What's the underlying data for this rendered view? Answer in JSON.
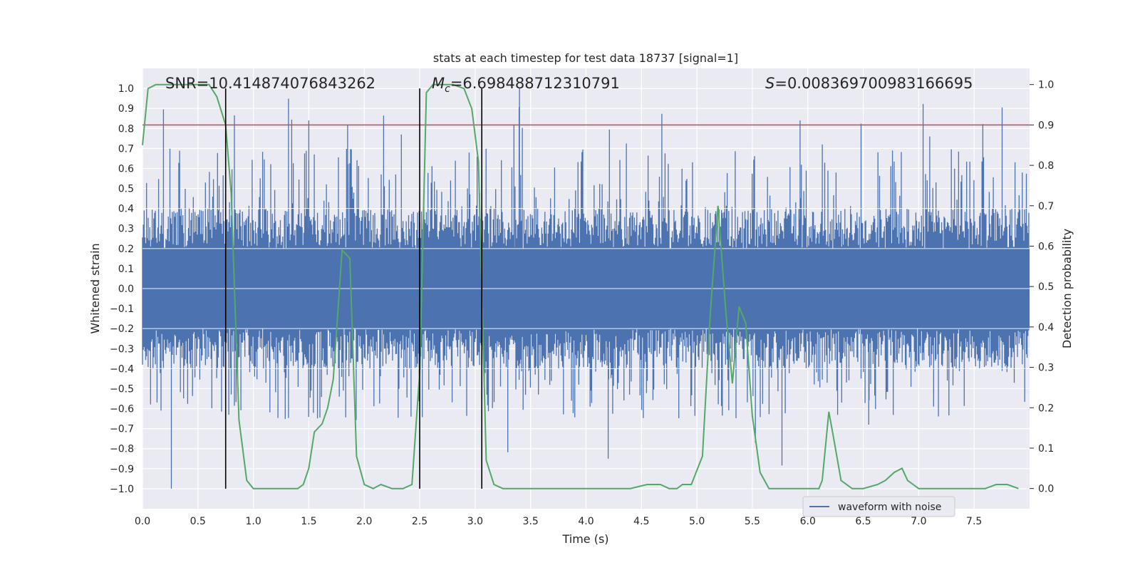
{
  "chart_data": {
    "type": "line",
    "title": "stats at each timestep for test data 18737 [signal=1]",
    "xlabel": "Time (s)",
    "ylabel": "Whitened strain",
    "y2label": "Detection probability",
    "xlim": [
      0.0,
      8.0
    ],
    "ylim": [
      -1.1,
      1.1
    ],
    "y2lim": [
      -0.05,
      1.04
    ],
    "x_ticks": [
      "0.0",
      "0.5",
      "1.0",
      "1.5",
      "2.0",
      "2.5",
      "3.0",
      "3.5",
      "4.0",
      "4.5",
      "5.0",
      "5.5",
      "6.0",
      "6.5",
      "7.0",
      "7.5"
    ],
    "y_ticks": [
      "1.0",
      "0.9",
      "0.8",
      "0.7",
      "0.6",
      "0.5",
      "0.4",
      "0.3",
      "0.2",
      "0.1",
      "0.0",
      "−0.1",
      "−0.2",
      "−0.3",
      "−0.4",
      "−0.5",
      "−0.6",
      "−0.7",
      "−0.8",
      "−0.9",
      "−1.0"
    ],
    "y2_ticks": [
      "1.0",
      "0.9",
      "0.8",
      "0.7",
      "0.6",
      "0.5",
      "0.4",
      "0.3",
      "0.2",
      "0.1",
      "0.0"
    ],
    "grid": true,
    "legend": {
      "placement": "lower-right",
      "entries": [
        "waveform with noise"
      ]
    },
    "annotations": {
      "snr": "SNR=10.414874076843262",
      "mc_symbol": "M",
      "mc_sub": "c",
      "mc_value": "=6.698488712310791",
      "s_symbol": "S",
      "s_value": "=0.008369700983166695"
    },
    "vertical_lines_x": [
      0.75,
      2.5,
      3.06
    ],
    "threshold_y2": 0.9,
    "series": [
      {
        "name": "waveform with noise",
        "axis": "left",
        "color": "#4c72b0",
        "description": "noisy whitened strain, amplitude mostly within ±0.4 with spikes up to ~±1.0"
      },
      {
        "axis": "right",
        "color": "#55a868",
        "x": [
          0.0,
          0.05,
          0.12,
          0.2,
          0.3,
          0.4,
          0.5,
          0.6,
          0.67,
          0.75,
          0.8,
          0.87,
          0.94,
          1.0,
          1.1,
          1.2,
          1.3,
          1.4,
          1.45,
          1.5,
          1.55,
          1.62,
          1.67,
          1.72,
          1.8,
          1.87,
          1.93,
          2.0,
          2.08,
          2.15,
          2.25,
          2.35,
          2.43,
          2.5,
          2.56,
          2.62,
          2.7,
          2.8,
          2.9,
          2.97,
          3.03,
          3.1,
          3.17,
          3.25,
          3.4,
          3.6,
          3.8,
          4.0,
          4.2,
          4.4,
          4.55,
          4.67,
          4.75,
          4.82,
          4.87,
          4.95,
          5.05,
          5.12,
          5.19,
          5.26,
          5.32,
          5.38,
          5.44,
          5.5,
          5.57,
          5.65,
          5.8,
          6.0,
          6.1,
          6.13,
          6.19,
          6.23,
          6.3,
          6.4,
          6.5,
          6.63,
          6.7,
          6.78,
          6.85,
          6.9,
          6.95,
          7.0,
          7.1,
          7.2,
          7.4,
          7.6,
          7.7,
          7.8,
          7.9
        ],
        "values": [
          0.85,
          0.99,
          1.0,
          1.0,
          1.0,
          1.0,
          1.0,
          1.0,
          0.97,
          0.9,
          0.73,
          0.17,
          0.02,
          0.0,
          0.0,
          0.0,
          0.0,
          0.0,
          0.01,
          0.05,
          0.14,
          0.16,
          0.2,
          0.27,
          0.59,
          0.57,
          0.08,
          0.01,
          0.0,
          0.01,
          0.0,
          0.0,
          0.01,
          0.29,
          0.98,
          1.0,
          1.0,
          1.0,
          0.99,
          0.94,
          0.81,
          0.07,
          0.01,
          0.0,
          0.0,
          0.0,
          0.0,
          0.0,
          0.0,
          0.0,
          0.01,
          0.01,
          0.0,
          0.0,
          0.01,
          0.01,
          0.08,
          0.43,
          0.7,
          0.44,
          0.26,
          0.45,
          0.41,
          0.18,
          0.04,
          0.0,
          0.0,
          0.0,
          0.0,
          0.02,
          0.19,
          0.13,
          0.02,
          0.0,
          0.0,
          0.01,
          0.02,
          0.04,
          0.05,
          0.02,
          0.01,
          0.0,
          0.0,
          0.0,
          0.0,
          0.0,
          0.01,
          0.01,
          0.0
        ]
      }
    ]
  }
}
